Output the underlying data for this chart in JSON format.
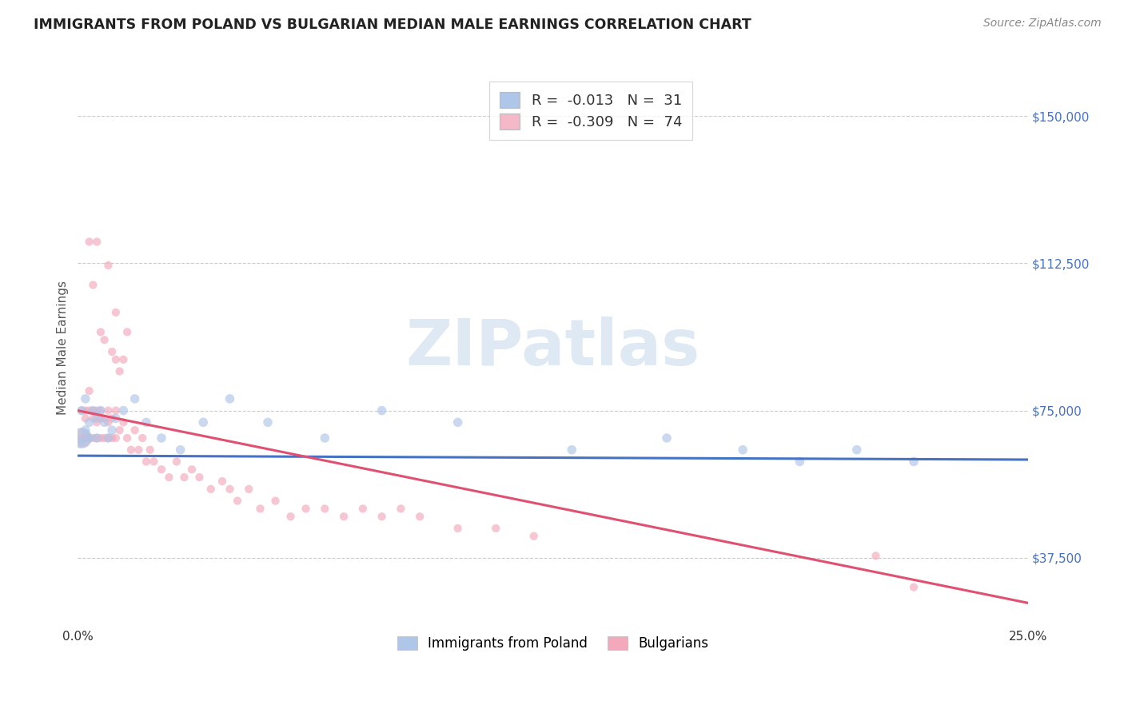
{
  "title": "IMMIGRANTS FROM POLAND VS BULGARIAN MEDIAN MALE EARNINGS CORRELATION CHART",
  "source": "Source: ZipAtlas.com",
  "xlabel": "",
  "ylabel": "Median Male Earnings",
  "xlim": [
    0.0,
    0.25
  ],
  "ylim": [
    20000,
    162000
  ],
  "yticks": [
    37500,
    75000,
    112500,
    150000
  ],
  "ytick_labels": [
    "$37,500",
    "$75,000",
    "$112,500",
    "$150,000"
  ],
  "xticks": [
    0.0,
    0.05,
    0.1,
    0.15,
    0.2,
    0.25
  ],
  "xtick_labels": [
    "0.0%",
    "",
    "",
    "",
    "",
    "25.0%"
  ],
  "grid_color": "#cccccc",
  "background_color": "#ffffff",
  "watermark_text": "ZIPatlas",
  "legend_r1": "R =  -0.013   N =  31",
  "legend_r2": "R =  -0.309   N =  74",
  "legend_color1": "#aec6e8",
  "legend_color2": "#f4b8c8",
  "bottom_legend_label1": "Immigrants from Poland",
  "bottom_legend_label2": "Bulgarians",
  "poland_x": [
    0.001,
    0.001,
    0.002,
    0.002,
    0.003,
    0.003,
    0.004,
    0.005,
    0.005,
    0.006,
    0.007,
    0.008,
    0.009,
    0.01,
    0.012,
    0.015,
    0.018,
    0.022,
    0.027,
    0.033,
    0.04,
    0.05,
    0.065,
    0.08,
    0.1,
    0.13,
    0.155,
    0.175,
    0.19,
    0.205,
    0.22
  ],
  "poland_y": [
    67000,
    75000,
    70000,
    78000,
    68000,
    72000,
    75000,
    73000,
    68000,
    75000,
    72000,
    68000,
    70000,
    73000,
    75000,
    78000,
    72000,
    68000,
    65000,
    72000,
    78000,
    72000,
    68000,
    75000,
    72000,
    65000,
    68000,
    65000,
    62000,
    65000,
    62000
  ],
  "poland_bigdot_x": [
    0.001
  ],
  "poland_bigdot_y": [
    68000
  ],
  "bulgaria_x": [
    0.001,
    0.001,
    0.002,
    0.002,
    0.002,
    0.003,
    0.003,
    0.003,
    0.004,
    0.004,
    0.004,
    0.005,
    0.005,
    0.005,
    0.006,
    0.006,
    0.006,
    0.007,
    0.007,
    0.008,
    0.008,
    0.008,
    0.009,
    0.009,
    0.01,
    0.01,
    0.011,
    0.012,
    0.013,
    0.014,
    0.015,
    0.016,
    0.017,
    0.018,
    0.019,
    0.02,
    0.022,
    0.024,
    0.026,
    0.028,
    0.03,
    0.032,
    0.035,
    0.038,
    0.04,
    0.042,
    0.045,
    0.048,
    0.052,
    0.056,
    0.06,
    0.065,
    0.07,
    0.075,
    0.08,
    0.085,
    0.09,
    0.1,
    0.11,
    0.12,
    0.003,
    0.004,
    0.005,
    0.006,
    0.007,
    0.008,
    0.009,
    0.01,
    0.01,
    0.011,
    0.013,
    0.012,
    0.22,
    0.21
  ],
  "bulgaria_y": [
    75000,
    68000,
    75000,
    68000,
    73000,
    75000,
    68000,
    80000,
    75000,
    68000,
    73000,
    75000,
    68000,
    72000,
    75000,
    68000,
    73000,
    68000,
    73000,
    68000,
    72000,
    75000,
    68000,
    73000,
    75000,
    68000,
    70000,
    72000,
    68000,
    65000,
    70000,
    65000,
    68000,
    62000,
    65000,
    62000,
    60000,
    58000,
    62000,
    58000,
    60000,
    58000,
    55000,
    57000,
    55000,
    52000,
    55000,
    50000,
    52000,
    48000,
    50000,
    50000,
    48000,
    50000,
    48000,
    50000,
    48000,
    45000,
    45000,
    43000,
    118000,
    107000,
    118000,
    95000,
    93000,
    112000,
    90000,
    100000,
    88000,
    85000,
    95000,
    88000,
    30000,
    38000
  ],
  "bulgaria_bigdot_x": [
    0.001
  ],
  "bulgaria_bigdot_y": [
    68000
  ],
  "poland_trendline_x": [
    0.0,
    0.25
  ],
  "poland_trendline_y": [
    63500,
    62500
  ],
  "bulgaria_trendline_x": [
    0.0,
    0.25
  ],
  "bulgaria_trendline_y": [
    75000,
    26000
  ],
  "dot_size_poland": 70,
  "dot_size_bulgaria": 55,
  "bigdot_size_poland": 350,
  "bigdot_size_bulgaria": 300,
  "dot_alpha": 0.65,
  "line_color_poland": "#4472c4",
  "line_color_bulgaria": "#e05070",
  "dot_color_poland": "#aec6e8",
  "dot_color_bulgaria": "#f4a8bc",
  "ytick_color": "#4472c4",
  "ylabel_color": "#555555",
  "title_color": "#222222",
  "source_color": "#888888"
}
